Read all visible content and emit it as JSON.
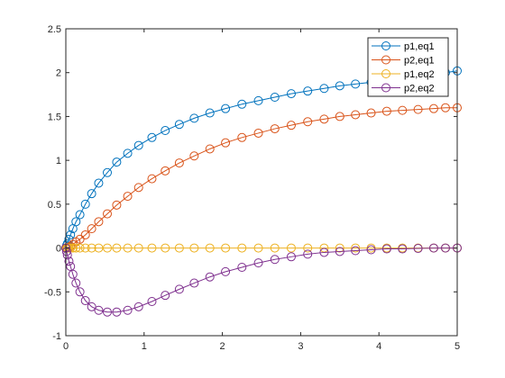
{
  "chart_data": {
    "type": "line",
    "title": "",
    "xlabel": "",
    "ylabel": "",
    "xlim": [
      0,
      5
    ],
    "ylim": [
      -1,
      2.5
    ],
    "xticks": [
      0,
      1,
      2,
      3,
      4,
      5
    ],
    "yticks": [
      -1,
      -0.5,
      0,
      0.5,
      1,
      1.5,
      2,
      2.5
    ],
    "xtick_labels": [
      "0",
      "1",
      "2",
      "3",
      "4",
      "5"
    ],
    "ytick_labels": [
      "-1",
      "-0.5",
      "0",
      "0.5",
      "1",
      "1.5",
      "2",
      "2.5"
    ],
    "grid": false,
    "legend_position": "top-right",
    "marker": "circle-open",
    "x": [
      0,
      0.01,
      0.02,
      0.04,
      0.06,
      0.09,
      0.13,
      0.18,
      0.25,
      0.33,
      0.42,
      0.53,
      0.65,
      0.79,
      0.93,
      1.1,
      1.27,
      1.45,
      1.64,
      1.84,
      2.04,
      2.25,
      2.46,
      2.67,
      2.88,
      3.09,
      3.3,
      3.5,
      3.7,
      3.9,
      4.1,
      4.3,
      4.5,
      4.7,
      4.85,
      5.0
    ],
    "series": [
      {
        "name": "p1,eq1",
        "color": "#0072BD",
        "values": [
          0,
          0.03,
          0.05,
          0.1,
          0.15,
          0.22,
          0.3,
          0.38,
          0.5,
          0.62,
          0.74,
          0.86,
          0.98,
          1.08,
          1.17,
          1.26,
          1.34,
          1.41,
          1.48,
          1.54,
          1.59,
          1.64,
          1.68,
          1.72,
          1.76,
          1.79,
          1.82,
          1.85,
          1.87,
          1.89,
          1.92,
          1.94,
          1.96,
          1.98,
          2.0,
          2.02
        ]
      },
      {
        "name": "p2,eq1",
        "color": "#D95319",
        "values": [
          0,
          0.0,
          0.0,
          0.01,
          0.02,
          0.04,
          0.07,
          0.1,
          0.15,
          0.22,
          0.3,
          0.39,
          0.49,
          0.59,
          0.69,
          0.79,
          0.88,
          0.97,
          1.05,
          1.13,
          1.2,
          1.26,
          1.31,
          1.36,
          1.4,
          1.44,
          1.47,
          1.5,
          1.52,
          1.54,
          1.56,
          1.57,
          1.58,
          1.59,
          1.6,
          1.6
        ]
      },
      {
        "name": "p1,eq2",
        "color": "#EDB120",
        "values": [
          0,
          0,
          0,
          0,
          0,
          0,
          0,
          0,
          0,
          0,
          0,
          0,
          0,
          0,
          0,
          0,
          0,
          0,
          0,
          0,
          0,
          0,
          0,
          0,
          0,
          0,
          0,
          0,
          0,
          0,
          0,
          0,
          0,
          0,
          0,
          0
        ]
      },
      {
        "name": "p2,eq2",
        "color": "#7E2F8E",
        "values": [
          0,
          -0.04,
          -0.08,
          -0.15,
          -0.21,
          -0.3,
          -0.4,
          -0.5,
          -0.6,
          -0.67,
          -0.71,
          -0.73,
          -0.73,
          -0.71,
          -0.67,
          -0.61,
          -0.54,
          -0.47,
          -0.4,
          -0.33,
          -0.27,
          -0.22,
          -0.17,
          -0.13,
          -0.1,
          -0.07,
          -0.05,
          -0.04,
          -0.03,
          -0.02,
          -0.01,
          -0.01,
          -0.005,
          0,
          0,
          0
        ]
      }
    ]
  }
}
